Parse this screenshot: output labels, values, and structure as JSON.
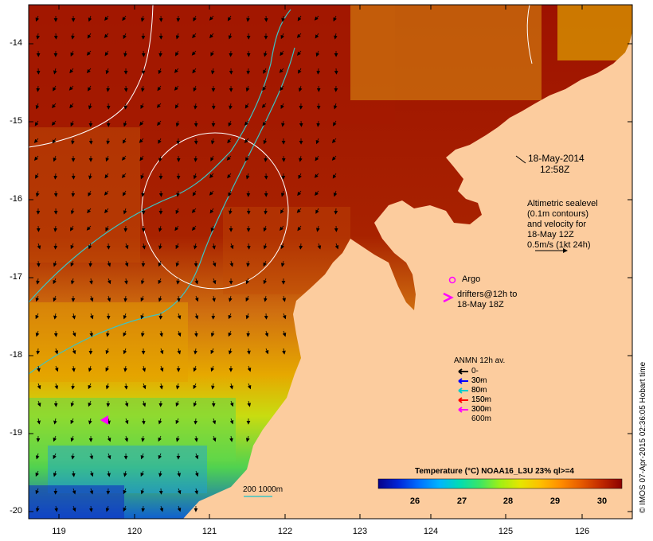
{
  "map": {
    "y_ticks": [
      "-14",
      "-15",
      "-16",
      "-17",
      "-18",
      "-19",
      "-20"
    ],
    "x_ticks": [
      "119",
      "120",
      "121",
      "122",
      "123",
      "124",
      "125",
      "126"
    ]
  },
  "timestamp": {
    "date": "18-May-2014",
    "time": "12:58Z"
  },
  "sealevel_note": [
    "Altimetric sealevel",
    "(0.1m contours)",
    "and velocity for",
    "18-May 12Z",
    "0.5m/s (1kt 24h)"
  ],
  "argo_label": "Argo",
  "drifters_label": [
    "drifters@12h to",
    "18-May 18Z"
  ],
  "anmn": {
    "title": "ANMN 12h av.",
    "items": [
      {
        "label": "0-30m",
        "color": "#000000"
      },
      {
        "label": "30-80m",
        "color": "#0000ff"
      },
      {
        "label": "80-150m",
        "color": "#00cccc"
      },
      {
        "label": "150-300m",
        "color": "#ff0000"
      },
      {
        "label": "300-600m",
        "color": "#ff00ff"
      }
    ]
  },
  "colorbar": {
    "title": "Temperature (°C) NOAA16_L3U 23% ql>=4",
    "labels": [
      "26",
      "27",
      "28",
      "29",
      "30"
    ],
    "colors": [
      "#06008a",
      "#0026d8",
      "#0070ff",
      "#00b4ff",
      "#00dcb4",
      "#3ce664",
      "#a0f014",
      "#e6e600",
      "#ffbe00",
      "#ff8c00",
      "#e65a00",
      "#c02800",
      "#8c0000"
    ]
  },
  "depth_legend": "200  1000m",
  "credit": "© IMOS 07-Apr-2015 02:36:05 Hobart time",
  "colors": {
    "land": "#fccc9e",
    "ocean_warm": "#a01800",
    "ocean_mid": "#d06a0a",
    "ocean_cool": "#e8b000",
    "contour": "#ffffff",
    "isobath": "#3cc4c4",
    "argo": "#ff00ff"
  }
}
